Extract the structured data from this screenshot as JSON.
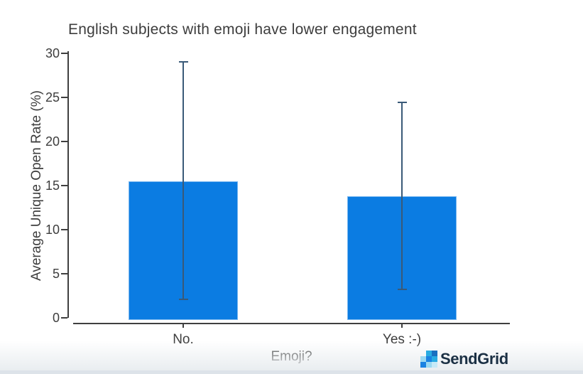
{
  "title": "English subjects with emoji have lower engagement",
  "chart_data": {
    "type": "bar",
    "categories": [
      "No.",
      "Yes :-)"
    ],
    "values": [
      15.5,
      13.8
    ],
    "error_low": [
      2.1,
      3.2
    ],
    "error_high": [
      29.0,
      24.4
    ],
    "title": "English subjects with emoji have lower engagement",
    "xlabel": "Emoji?",
    "ylabel": "Average Unique Open Rate (%)",
    "ylim": [
      0,
      30
    ],
    "yticks": [
      0,
      5,
      10,
      15,
      20,
      25,
      30
    ],
    "grid": false,
    "legend": "none",
    "bar_color": "#0b7ce2",
    "error_color": "#3a5a78",
    "axis_color": "#3f3f3f",
    "text_color": "#3d3d3d"
  },
  "branding": {
    "logo_text": "SendGrid",
    "logo_text_color": "#1b3044",
    "pixel_grid": [
      [
        null,
        "#29abe2",
        "#1a6fc0"
      ],
      [
        "#9bd9f2",
        "#1a82e2",
        "#29abe2"
      ],
      [
        "#1a82e2",
        "#9bd9f2",
        "#c6e9f7"
      ]
    ]
  }
}
